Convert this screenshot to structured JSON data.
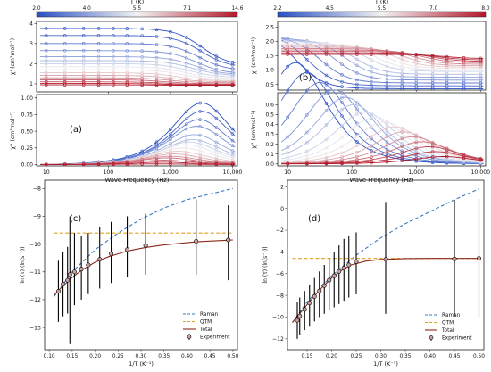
{
  "panel_labels": [
    "(a)",
    "(b)",
    "(c)",
    "(d)"
  ],
  "chart_data": [
    {
      "panel": "(a)",
      "type": "line",
      "colorbar": {
        "title": "T (K)",
        "ticks": [
          "2.0",
          "4.0",
          "5.5",
          "7.1",
          "14.6"
        ],
        "low_color": "#2a4fc4",
        "mid_color": "#f2f2f2",
        "high_color": "#b2182b"
      },
      "xlabel": "Wave Frequency (Hz)",
      "xscale": "log",
      "xlim": [
        7,
        12000
      ],
      "xticks": [
        10,
        100,
        1000,
        10000
      ],
      "xtick_labels": [
        "10",
        "100",
        "1,000",
        "10,000"
      ],
      "subplots": [
        {
          "ylabel": "χ' (cm³mol⁻¹)",
          "ylim": [
            0.6,
            4.1
          ],
          "yticks": [
            1,
            2,
            3,
            4
          ],
          "curve_model": {
            "kind": "in-phase",
            "tau_s": [
              5e-05,
              5e-05,
              5.5e-05,
              6e-05,
              6.5e-05,
              7e-05,
              8e-05,
              9e-05,
              0.0001,
              0.00012,
              0.00014,
              0.00016,
              0.00018,
              0.0002,
              0.00022,
              0.00025
            ],
            "chi_t": [
              3.75,
              3.4,
              3.0,
              2.65,
              2.35,
              2.15,
              2.0,
              1.85,
              1.7,
              1.55,
              1.42,
              1.3,
              1.2,
              1.1,
              1.02,
              0.95
            ],
            "chi_s": [
              1.9,
              1.8,
              1.65,
              1.5,
              1.45,
              1.4,
              1.32,
              1.25,
              1.2,
              1.15,
              1.1,
              1.05,
              1.0,
              0.97,
              0.95,
              0.93
            ]
          }
        },
        {
          "ylabel": "χ'' (cm³mol⁻¹)",
          "ylim": [
            -0.02,
            1.05
          ],
          "yticks": [
            0.0,
            0.25,
            0.5,
            0.75,
            1.0
          ],
          "ytick_labels": [
            "0.00",
            "0.25",
            "0.50",
            "0.75",
            "1.00"
          ]
        }
      ]
    },
    {
      "panel": "(b)",
      "type": "line",
      "colorbar": {
        "title": "T (K)",
        "ticks": [
          "2.2",
          "4.5",
          "5.5",
          "7.0",
          "8.0"
        ],
        "low_color": "#2a4fc4",
        "mid_color": "#f2f2f2",
        "high_color": "#b2182b"
      },
      "xlabel": "Wave Frequency (Hz)",
      "xscale": "log",
      "xlim": [
        7,
        12000
      ],
      "xticks": [
        10,
        100,
        1000,
        10000
      ],
      "xtick_labels": [
        "10",
        "100",
        "1,000",
        "10,000"
      ],
      "subplots": [
        {
          "ylabel": "χ' (cm³mol⁻¹)",
          "ylim": [
            0.3,
            2.7
          ],
          "yticks": [
            0.5,
            1.0,
            1.5,
            2.0,
            2.5
          ],
          "ytick_labels": [
            "0.5",
            "1.0",
            "1.5",
            "2.0",
            "2.5"
          ],
          "curve_model": {
            "kind": "in-phase",
            "tau_s": [
              0.012,
              0.008,
              0.005,
              0.003,
              0.002,
              0.0015,
              0.001,
              0.0007,
              0.0005,
              0.00035,
              0.00025,
              0.00018,
              0.00013,
              0.0001,
              8e-05,
              6e-05
            ],
            "chi_t": [
              2.4,
              2.3,
              2.2,
              2.15,
              2.1,
              2.05,
              2.0,
              1.95,
              1.9,
              1.85,
              1.8,
              1.75,
              1.7,
              1.65,
              1.6,
              1.55
            ],
            "chi_s": [
              0.35,
              0.45,
              0.55,
              0.65,
              0.75,
              0.85,
              0.95,
              1.0,
              1.05,
              1.1,
              1.15,
              1.2,
              1.25,
              1.3,
              1.35,
              1.4
            ]
          }
        },
        {
          "ylabel": "χ'' (cm³mol⁻¹)",
          "ylim": [
            -0.02,
            0.72
          ],
          "yticks": [
            0.0,
            0.1,
            0.2,
            0.3,
            0.4,
            0.5,
            0.6
          ],
          "ytick_labels": [
            "0.0",
            "0.1",
            "0.2",
            "0.3",
            "0.4",
            "0.5",
            "0.6"
          ]
        }
      ]
    },
    {
      "panel": "(c)",
      "type": "line",
      "xlabel": "1/T (K⁻¹)",
      "ylabel": "ln (τ) (ln(s⁻¹))",
      "xlim": [
        0.09,
        0.51
      ],
      "ylim": [
        -13.8,
        -7.7
      ],
      "xticks": [
        0.1,
        0.15,
        0.2,
        0.25,
        0.3,
        0.35,
        0.4,
        0.45,
        0.5
      ],
      "xtick_labels": [
        "0.10",
        "0.15",
        "0.20",
        "0.25",
        "0.30",
        "0.35",
        "0.40",
        "0.45",
        "0.50"
      ],
      "yticks": [
        -13,
        -12,
        -11,
        -10,
        -9,
        -8
      ],
      "series": [
        {
          "name": "Raman",
          "style": "dashed",
          "color": "#3b78c4",
          "x": [
            0.11,
            0.15,
            0.2,
            0.25,
            0.3,
            0.35,
            0.4,
            0.45,
            0.5
          ],
          "y": [
            -11.9,
            -11.0,
            -10.2,
            -9.6,
            -9.1,
            -8.7,
            -8.4,
            -8.2,
            -8.0
          ]
        },
        {
          "name": "QTM",
          "style": "dashed",
          "color": "#e0a020",
          "x": [
            0.11,
            0.5
          ],
          "y": [
            -9.6,
            -9.6
          ]
        },
        {
          "name": "Total",
          "style": "solid",
          "color": "#8b2a1a",
          "x": [
            0.11,
            0.13,
            0.15,
            0.17,
            0.2,
            0.23,
            0.27,
            0.31,
            0.35,
            0.42,
            0.5
          ],
          "y": [
            -11.85,
            -11.5,
            -11.2,
            -10.95,
            -10.65,
            -10.45,
            -10.25,
            -10.12,
            -10.03,
            -9.92,
            -9.85
          ]
        },
        {
          "name": "Experiment",
          "style": "errorbar",
          "color": "#000000",
          "x": [
            0.12,
            0.13,
            0.14,
            0.145,
            0.155,
            0.17,
            0.185,
            0.21,
            0.235,
            0.27,
            0.31,
            0.42,
            0.49
          ],
          "y": [
            -11.7,
            -11.45,
            -11.3,
            -11.1,
            -11.0,
            -10.9,
            -10.75,
            -10.55,
            -10.35,
            -10.2,
            -10.05,
            -9.9,
            -9.85
          ],
          "yerr_low": [
            -12.8,
            -12.6,
            -12.5,
            -13.6,
            -12.2,
            -12.0,
            -11.8,
            -11.6,
            -11.4,
            -11.2,
            -11.1,
            -11.1,
            -11.3
          ],
          "yerr_high": [
            -10.6,
            -10.3,
            -10.1,
            -9.0,
            -9.6,
            -9.7,
            -9.6,
            -9.4,
            -9.2,
            -9.0,
            -8.9,
            -8.4,
            -8.6
          ]
        }
      ]
    },
    {
      "panel": "(d)",
      "type": "line",
      "xlabel": "1/T (K⁻¹)",
      "ylabel": "ln (τ) (ln(s⁻¹))",
      "xlim": [
        0.11,
        0.51
      ],
      "ylim": [
        -13,
        2.6
      ],
      "xticks": [
        0.15,
        0.2,
        0.25,
        0.3,
        0.35,
        0.4,
        0.45,
        0.5
      ],
      "xtick_labels": [
        "0.15",
        "0.20",
        "0.25",
        "0.30",
        "0.35",
        "0.40",
        "0.45",
        "0.50"
      ],
      "yticks": [
        -12,
        -10,
        -8,
        -6,
        -4,
        -2,
        0,
        2
      ],
      "series": [
        {
          "name": "Raman",
          "style": "dashed",
          "color": "#3b78c4",
          "x": [
            0.12,
            0.15,
            0.2,
            0.25,
            0.3,
            0.35,
            0.4,
            0.45,
            0.5
          ],
          "y": [
            -10.5,
            -8.6,
            -6.2,
            -4.3,
            -2.7,
            -1.4,
            -0.3,
            0.8,
            1.8
          ]
        },
        {
          "name": "QTM",
          "style": "dashed",
          "color": "#e0a020",
          "x": [
            0.12,
            0.5
          ],
          "y": [
            -4.6,
            -4.6
          ]
        },
        {
          "name": "Total",
          "style": "solid",
          "color": "#8b2a1a",
          "x": [
            0.12,
            0.14,
            0.16,
            0.18,
            0.2,
            0.22,
            0.24,
            0.27,
            0.3,
            0.35,
            0.4,
            0.5
          ],
          "y": [
            -10.5,
            -9.4,
            -8.3,
            -7.3,
            -6.4,
            -5.7,
            -5.2,
            -4.85,
            -4.7,
            -4.62,
            -4.6,
            -4.6
          ]
        },
        {
          "name": "Experiment",
          "style": "errorbar",
          "color": "#000000",
          "x": [
            0.13,
            0.135,
            0.145,
            0.155,
            0.165,
            0.175,
            0.185,
            0.195,
            0.205,
            0.215,
            0.225,
            0.235,
            0.25,
            0.31,
            0.45,
            0.5
          ],
          "y": [
            -10.3,
            -9.9,
            -9.3,
            -8.7,
            -8.1,
            -7.6,
            -7.1,
            -6.6,
            -6.2,
            -5.8,
            -5.5,
            -5.2,
            -4.9,
            -4.7,
            -4.65,
            -4.6
          ],
          "yerr_low": [
            -12.0,
            -11.6,
            -11.2,
            -10.8,
            -10.4,
            -10.0,
            -9.7,
            -9.4,
            -9.1,
            -8.8,
            -8.5,
            -8.2,
            -7.9,
            -9.7,
            -9.9,
            -10.0
          ],
          "yerr_high": [
            -8.6,
            -8.2,
            -7.6,
            -7.0,
            -6.4,
            -5.8,
            -5.2,
            -4.6,
            -4.0,
            -3.4,
            -2.8,
            -2.5,
            -2.2,
            0.6,
            0.8,
            0.9
          ]
        }
      ]
    }
  ]
}
